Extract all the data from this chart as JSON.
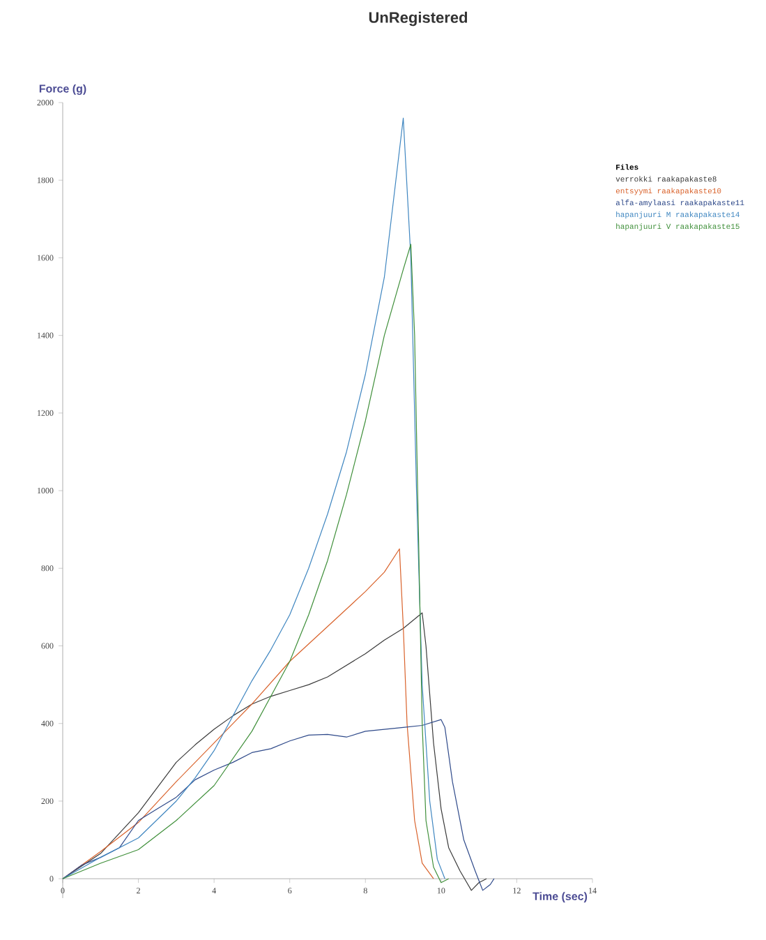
{
  "chart_data": {
    "type": "line",
    "title": "UnRegistered",
    "xlabel": "Time (sec)",
    "ylabel": "Force (g)",
    "legend_title": "Files",
    "legend": "top right",
    "grid": false,
    "marker": "none",
    "line_style": "solid",
    "xlim": [
      0,
      14
    ],
    "xticks": [
      0,
      2,
      4,
      6,
      8,
      10,
      12,
      14
    ],
    "ylim": [
      -50,
      2000
    ],
    "yticks": [
      0,
      200,
      400,
      600,
      800,
      1000,
      1200,
      1400,
      1600,
      1800,
      2000
    ],
    "series": [
      {
        "name": "verrokki raakapakaste8",
        "color": "#3a3a3a",
        "x": [
          0,
          1,
          2,
          3,
          3.5,
          4,
          4.5,
          5,
          5.5,
          6,
          6.5,
          7,
          7.5,
          8,
          8.5,
          9,
          9.5,
          9.6,
          9.8,
          10,
          10.2,
          10.5,
          10.8,
          11,
          11.2
        ],
        "values": [
          0,
          65,
          170,
          300,
          345,
          385,
          420,
          450,
          470,
          485,
          500,
          520,
          550,
          580,
          615,
          645,
          685,
          600,
          350,
          180,
          80,
          20,
          -30,
          -10,
          0
        ]
      },
      {
        "name": "entsyymi raakapakaste10",
        "color": "#d9622b",
        "x": [
          0,
          1,
          2,
          3,
          4,
          5,
          6,
          7,
          8,
          8.5,
          8.9,
          9,
          9.1,
          9.3,
          9.5,
          9.8
        ],
        "values": [
          0,
          70,
          145,
          250,
          350,
          450,
          560,
          650,
          740,
          790,
          850,
          650,
          400,
          150,
          40,
          0
        ]
      },
      {
        "name": "alfa-amylaasi raakapakaste11",
        "color": "#2f4a8a",
        "x": [
          0,
          0.5,
          1,
          1.5,
          2,
          2.5,
          3,
          3.5,
          4,
          4.5,
          5,
          5.5,
          6,
          6.5,
          7,
          7.5,
          8,
          8.5,
          9,
          9.5,
          10,
          10.1,
          10.3,
          10.6,
          10.9,
          11.1,
          11.3,
          11.4
        ],
        "values": [
          0,
          35,
          55,
          80,
          150,
          180,
          210,
          255,
          280,
          300,
          325,
          335,
          355,
          370,
          372,
          365,
          380,
          385,
          390,
          395,
          410,
          390,
          250,
          100,
          20,
          -30,
          -15,
          0
        ]
      },
      {
        "name": "hapanjuuri M raakapakaste14",
        "color": "#3f86c0",
        "x": [
          0,
          1,
          2,
          3,
          3.5,
          4,
          4.5,
          5,
          5.5,
          6,
          6.5,
          7,
          7.5,
          8,
          8.5,
          9,
          9.2,
          9.35,
          9.5,
          9.7,
          9.9,
          10.1
        ],
        "values": [
          0,
          55,
          105,
          200,
          260,
          330,
          420,
          510,
          590,
          680,
          800,
          940,
          1100,
          1300,
          1550,
          1960,
          1600,
          1000,
          500,
          200,
          50,
          0
        ]
      },
      {
        "name": "hapanjuuri V raakapakaste15",
        "color": "#3f8f3a",
        "x": [
          0,
          1,
          2,
          3,
          4,
          5,
          6,
          6.5,
          7,
          7.5,
          8,
          8.5,
          9,
          9.2,
          9.3,
          9.4,
          9.5,
          9.6,
          9.8,
          10,
          10.2
        ],
        "values": [
          0,
          40,
          75,
          150,
          240,
          380,
          560,
          680,
          820,
          990,
          1180,
          1400,
          1570,
          1635,
          1400,
          900,
          400,
          150,
          30,
          -10,
          0
        ]
      }
    ]
  }
}
